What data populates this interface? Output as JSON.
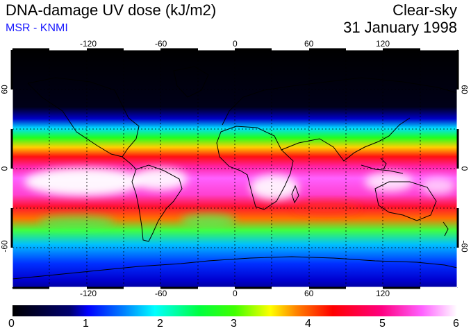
{
  "header": {
    "title": "DNA-damage UV dose (kJ/m2)",
    "source": "MSR - KNMI",
    "condition": "Clear-sky",
    "date": "31 January 1998"
  },
  "map": {
    "projection": "equirectangular",
    "lon_range": [
      -180,
      180
    ],
    "lat_range": [
      -90,
      90
    ],
    "lon_ticks": [
      "-120",
      "-60",
      "0",
      "60",
      "120"
    ],
    "lat_ticks": [
      "60",
      "0",
      "-60"
    ],
    "colormap_stops": [
      {
        "value": 0,
        "color": "#000000"
      },
      {
        "value": 0.8,
        "color": "#000060"
      },
      {
        "value": 1,
        "color": "#0000ff"
      },
      {
        "value": 1.5,
        "color": "#0080ff"
      },
      {
        "value": 1.9,
        "color": "#00ffff"
      },
      {
        "value": 2.5,
        "color": "#00ff40"
      },
      {
        "value": 3,
        "color": "#40ff00"
      },
      {
        "value": 3.5,
        "color": "#ffff00"
      },
      {
        "value": 3.8,
        "color": "#ff8000"
      },
      {
        "value": 4.3,
        "color": "#ff0000"
      },
      {
        "value": 5,
        "color": "#ff0080"
      },
      {
        "value": 5.5,
        "color": "#ff60ff"
      },
      {
        "value": 6,
        "color": "#ffffff"
      }
    ]
  },
  "colorbar": {
    "min": 0,
    "max": 6,
    "labels": [
      "0",
      "1",
      "2",
      "3",
      "4",
      "5",
      "6"
    ]
  }
}
